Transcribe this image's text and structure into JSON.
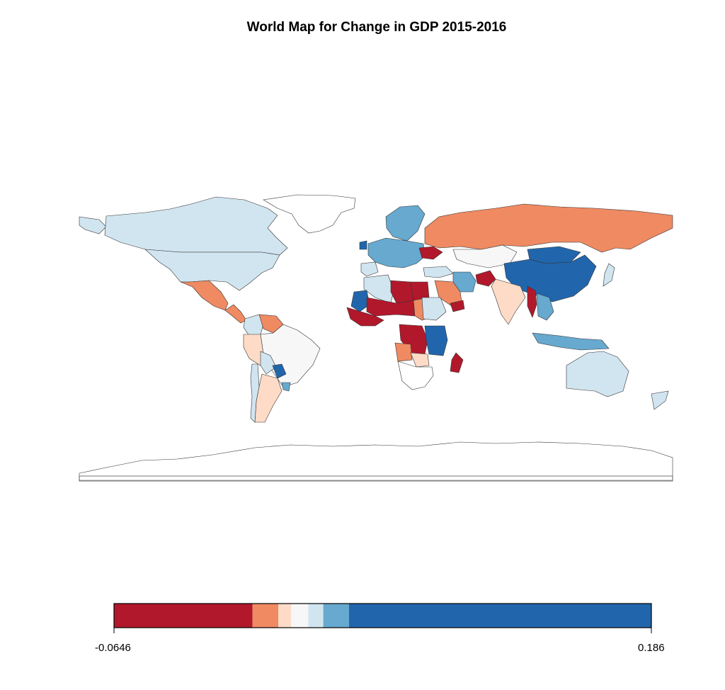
{
  "title": "World Map for Change in GDP 2015-2016",
  "colors": {
    "c1": "#b2182b",
    "c2": "#ef8a62",
    "c3": "#fddbc7",
    "c4": "#f7f7f7",
    "c5": "#d1e5f0",
    "c6": "#67a9cf",
    "c7": "#2166ac",
    "no_data": "#ffffff",
    "border": "#333333"
  },
  "legend": {
    "min_label": "-0.0646",
    "max_label": "0.186",
    "breaks": [
      -0.0646,
      0.0,
      0.012,
      0.018,
      0.026,
      0.033,
      0.045,
      0.186
    ]
  },
  "regions": [
    {
      "name": "Greenland",
      "bin": "none"
    },
    {
      "name": "Canada",
      "bin": "c5"
    },
    {
      "name": "United States",
      "bin": "c5"
    },
    {
      "name": "Alaska",
      "bin": "c5"
    },
    {
      "name": "Mexico",
      "bin": "c2"
    },
    {
      "name": "Central America",
      "bin": "c2"
    },
    {
      "name": "Colombia",
      "bin": "c5"
    },
    {
      "name": "Venezuela",
      "bin": "c2"
    },
    {
      "name": "Brazil",
      "bin": "c4"
    },
    {
      "name": "Peru",
      "bin": "c3"
    },
    {
      "name": "Bolivia",
      "bin": "c5"
    },
    {
      "name": "Paraguay",
      "bin": "c7"
    },
    {
      "name": "Argentina",
      "bin": "c3"
    },
    {
      "name": "Chile",
      "bin": "c5"
    },
    {
      "name": "Uruguay",
      "bin": "c6"
    },
    {
      "name": "Russia",
      "bin": "c2"
    },
    {
      "name": "Northern Europe",
      "bin": "c6"
    },
    {
      "name": "Western Europe",
      "bin": "c6"
    },
    {
      "name": "Ireland",
      "bin": "c7"
    },
    {
      "name": "Spain",
      "bin": "c5"
    },
    {
      "name": "Ukraine",
      "bin": "c1"
    },
    {
      "name": "Kazakhstan",
      "bin": "c4"
    },
    {
      "name": "China",
      "bin": "c7"
    },
    {
      "name": "Mongolia",
      "bin": "c7"
    },
    {
      "name": "India",
      "bin": "c3"
    },
    {
      "name": "Myanmar",
      "bin": "c1"
    },
    {
      "name": "Southeast Asia",
      "bin": "c6"
    },
    {
      "name": "Indonesia",
      "bin": "c6"
    },
    {
      "name": "Japan",
      "bin": "c5"
    },
    {
      "name": "Afghanistan",
      "bin": "c1"
    },
    {
      "name": "Iran",
      "bin": "c6"
    },
    {
      "name": "Saudi Arabia",
      "bin": "c2"
    },
    {
      "name": "Yemen",
      "bin": "c1"
    },
    {
      "name": "Turkey",
      "bin": "c5"
    },
    {
      "name": "Algeria",
      "bin": "c5"
    },
    {
      "name": "Libya",
      "bin": "c1"
    },
    {
      "name": "Egypt",
      "bin": "c1"
    },
    {
      "name": "Mali",
      "bin": "c7"
    },
    {
      "name": "Sahel",
      "bin": "c1"
    },
    {
      "name": "West Africa",
      "bin": "c1"
    },
    {
      "name": "Sudan",
      "bin": "c2"
    },
    {
      "name": "Ethiopia",
      "bin": "c5"
    },
    {
      "name": "DR Congo",
      "bin": "c1"
    },
    {
      "name": "East Africa",
      "bin": "c7"
    },
    {
      "name": "Angola",
      "bin": "c2"
    },
    {
      "name": "Zambia",
      "bin": "c3"
    },
    {
      "name": "Southern Africa",
      "bin": "none"
    },
    {
      "name": "Madagascar",
      "bin": "c1"
    },
    {
      "name": "Australia",
      "bin": "c5"
    },
    {
      "name": "New Zealand",
      "bin": "c5"
    },
    {
      "name": "Antarctica",
      "bin": "none"
    }
  ]
}
